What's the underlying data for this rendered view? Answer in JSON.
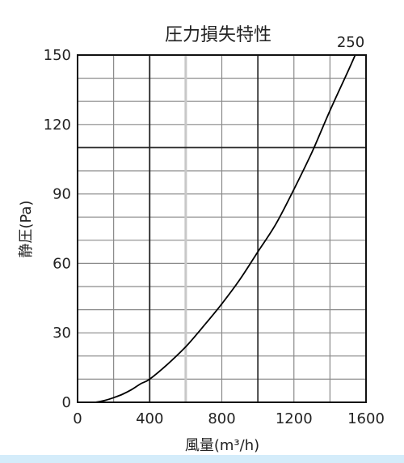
{
  "chart_data": {
    "type": "line",
    "title": "圧力損失特性",
    "xlabel": "風量(m³/h)",
    "ylabel": "静圧(Pa)",
    "xlim": [
      0,
      1600
    ],
    "ylim": [
      0,
      150
    ],
    "x_ticks": [
      "0",
      "400",
      "800",
      "1200",
      "1600"
    ],
    "y_ticks": [
      "0",
      "30",
      "60",
      "90",
      "120",
      "150"
    ],
    "grid": true,
    "series": [
      {
        "name": "250",
        "color": "#000000",
        "x": [
          100,
          150,
          200,
          250,
          300,
          350,
          400,
          500,
          600,
          700,
          800,
          900,
          1000,
          1100,
          1200,
          1300,
          1400,
          1500,
          1540
        ],
        "y": [
          0,
          0.8,
          2,
          3.5,
          5.5,
          8,
          10,
          16.5,
          24,
          33,
          42.5,
          53,
          65,
          77,
          92,
          108,
          126,
          143,
          150
        ]
      }
    ],
    "annotations": [
      {
        "text": "250",
        "x": 1515,
        "y": 150
      }
    ]
  }
}
